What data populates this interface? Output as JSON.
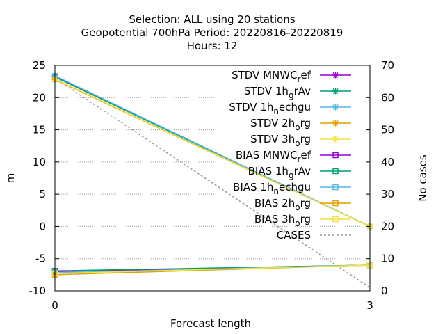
{
  "chart_data": {
    "type": "line",
    "title_lines": [
      "Selection: ALL using    20 stations",
      "Geopotential 700hPa   Period: 20220816-20220819",
      "Hours:  12"
    ],
    "xlabel": "Forecast length",
    "ylabel": "m",
    "y2label": "No cases",
    "xlim": [
      0,
      3
    ],
    "ylim": [
      -10,
      25
    ],
    "y2lim": [
      0,
      70
    ],
    "xticks": [
      "0",
      "3"
    ],
    "yticks": [
      "-10",
      "-5",
      "0",
      "5",
      "10",
      "15",
      "20",
      "25"
    ],
    "y2ticks": [
      "0",
      "10",
      "20",
      "30",
      "40",
      "50",
      "60",
      "70"
    ],
    "grid": true,
    "legend_position": "top-right",
    "x": [
      0,
      3
    ],
    "series": [
      {
        "name": "STDV MNWC_ref",
        "label_main": "STDV MNWC",
        "label_sub": "r",
        "label_tail": "ef",
        "kind": "stdv",
        "color": "#9400d3",
        "values": [
          23.3,
          0.0
        ],
        "axis": "y"
      },
      {
        "name": "STDV 1h_grAv",
        "label_main": "STDV 1h",
        "label_sub": "g",
        "label_tail": "rAv",
        "kind": "stdv",
        "color": "#009e73",
        "values": [
          23.2,
          0.0
        ],
        "axis": "y"
      },
      {
        "name": "STDV 1h_nechgu",
        "label_main": "STDV 1h",
        "label_sub": "n",
        "label_tail": "echgu",
        "kind": "stdv",
        "color": "#56b4e9",
        "values": [
          23.4,
          0.0
        ],
        "axis": "y"
      },
      {
        "name": "STDV 2h_org",
        "label_main": "STDV 2h",
        "label_sub": "o",
        "label_tail": "rg",
        "kind": "stdv",
        "color": "#e69f00",
        "values": [
          22.8,
          0.0
        ],
        "axis": "y"
      },
      {
        "name": "STDV 3h_org",
        "label_main": "STDV 3h",
        "label_sub": "o",
        "label_tail": "rg",
        "kind": "stdv",
        "color": "#f0e442",
        "values": [
          22.9,
          0.0
        ],
        "axis": "y"
      },
      {
        "name": "BIAS MNWC_ref",
        "label_main": "BIAS MNWC",
        "label_sub": "r",
        "label_tail": "ef",
        "kind": "bias",
        "color": "#9400d3",
        "values": [
          -7.0,
          -6.0
        ],
        "axis": "y"
      },
      {
        "name": "BIAS 1h_grAv",
        "label_main": "BIAS 1h",
        "label_sub": "g",
        "label_tail": "rAv",
        "kind": "bias",
        "color": "#009e73",
        "values": [
          -6.9,
          -6.0
        ],
        "axis": "y"
      },
      {
        "name": "BIAS 1h_nechgu",
        "label_main": "BIAS 1h",
        "label_sub": "n",
        "label_tail": "echgu",
        "kind": "bias",
        "color": "#56b4e9",
        "values": [
          -7.2,
          -6.0
        ],
        "axis": "y"
      },
      {
        "name": "BIAS 2h_org",
        "label_main": "BIAS 2h",
        "label_sub": "o",
        "label_tail": "rg",
        "kind": "bias",
        "color": "#e69f00",
        "values": [
          -7.5,
          -6.0
        ],
        "axis": "y"
      },
      {
        "name": "BIAS 3h_org",
        "label_main": "BIAS 3h",
        "label_sub": "o",
        "label_tail": "rg",
        "kind": "bias",
        "color": "#f0e442",
        "values": [
          -7.3,
          -6.0
        ],
        "axis": "y"
      },
      {
        "name": "CASES",
        "label_main": "CASES",
        "label_sub": "",
        "label_tail": "",
        "kind": "cases",
        "color": "#999999",
        "values": [
          66,
          1
        ],
        "axis": "y2"
      }
    ]
  }
}
